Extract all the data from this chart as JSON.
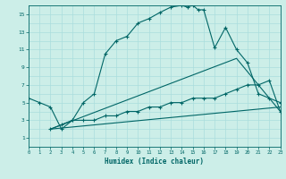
{
  "bg_color": "#cceee8",
  "line_color": "#006666",
  "grid_color": "#aadddd",
  "xlabel": "Humidex (Indice chaleur)",
  "xlim": [
    0,
    23
  ],
  "ylim": [
    0,
    16
  ],
  "xticks": [
    0,
    1,
    2,
    3,
    4,
    5,
    6,
    7,
    8,
    9,
    10,
    11,
    12,
    13,
    14,
    15,
    16,
    17,
    18,
    19,
    20,
    21,
    22,
    23
  ],
  "yticks": [
    1,
    3,
    5,
    7,
    9,
    11,
    13,
    15
  ],
  "curve1_x": [
    0,
    1,
    2,
    3,
    4,
    5,
    6,
    7,
    8,
    9,
    10,
    11,
    12,
    13,
    14,
    14.5,
    15,
    15.5,
    16,
    17,
    18,
    19,
    20,
    21,
    22,
    23
  ],
  "curve1_y": [
    5.5,
    5.0,
    4.5,
    2.0,
    3.0,
    5.0,
    6.0,
    10.5,
    12.0,
    12.5,
    14.0,
    14.5,
    15.2,
    15.8,
    16.0,
    15.8,
    16.0,
    15.5,
    15.5,
    11.2,
    13.5,
    11.0,
    9.5,
    6.0,
    5.5,
    5.0
  ],
  "curve2_x": [
    2,
    3,
    4,
    5,
    6,
    7,
    8,
    9,
    10,
    11,
    12,
    13,
    14,
    15,
    16,
    17,
    18,
    19,
    20,
    21,
    22,
    23
  ],
  "curve2_y": [
    2.0,
    2.5,
    3.0,
    3.0,
    3.0,
    3.5,
    3.5,
    4.0,
    4.0,
    4.5,
    4.5,
    5.0,
    5.0,
    5.5,
    5.5,
    5.5,
    6.0,
    6.5,
    7.0,
    7.0,
    7.5,
    4.0
  ],
  "line3_x": [
    2,
    19,
    23
  ],
  "line3_y": [
    2.0,
    10.0,
    4.0
  ],
  "line4_x": [
    2,
    23
  ],
  "line4_y": [
    2.0,
    4.5
  ]
}
